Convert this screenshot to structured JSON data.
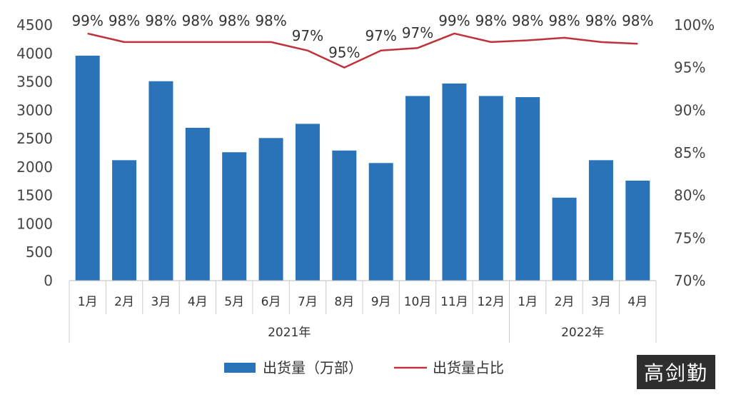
{
  "chart_data": {
    "type": "bar+line",
    "categories": [
      "1月",
      "2月",
      "3月",
      "4月",
      "5月",
      "6月",
      "7月",
      "8月",
      "9月",
      "10月",
      "11月",
      "12月",
      "1月",
      "2月",
      "3月",
      "4月"
    ],
    "groups": [
      {
        "label": "2021年",
        "span": 12
      },
      {
        "label": "2022年",
        "span": 4
      }
    ],
    "series": [
      {
        "name": "出货量（万部）",
        "kind": "bar",
        "axis": "left",
        "values": [
          3960,
          2120,
          3510,
          2690,
          2260,
          2510,
          2760,
          2290,
          2070,
          3250,
          3470,
          3250,
          3230,
          1460,
          2120,
          1760
        ]
      },
      {
        "name": "出货量占比",
        "kind": "line",
        "axis": "right",
        "values": [
          99,
          98,
          98,
          98,
          98,
          98,
          97,
          95,
          97,
          97.3,
          99,
          98,
          98.2,
          98.5,
          98,
          97.8
        ]
      }
    ],
    "data_labels": [
      "99%",
      "98%",
      "98%",
      "98%",
      "98%",
      "98%",
      "97%",
      "95%",
      "97%",
      "97%",
      "99%",
      "98%",
      "98%",
      "98%",
      "98%",
      "98%"
    ],
    "y_left": {
      "ylim": [
        0,
        4500
      ],
      "ticks": [
        "0",
        "500",
        "1000",
        "1500",
        "2000",
        "2500",
        "3000",
        "3500",
        "4000",
        "4500"
      ]
    },
    "y_right": {
      "ylim": [
        70,
        100
      ],
      "ticks": [
        "70%",
        "75%",
        "80%",
        "85%",
        "90%",
        "95%",
        "100%"
      ]
    },
    "colors": {
      "bar": "#2a73b9",
      "line": "#c0323b"
    },
    "legend_position": "bottom"
  },
  "watermark": "高剑勤"
}
